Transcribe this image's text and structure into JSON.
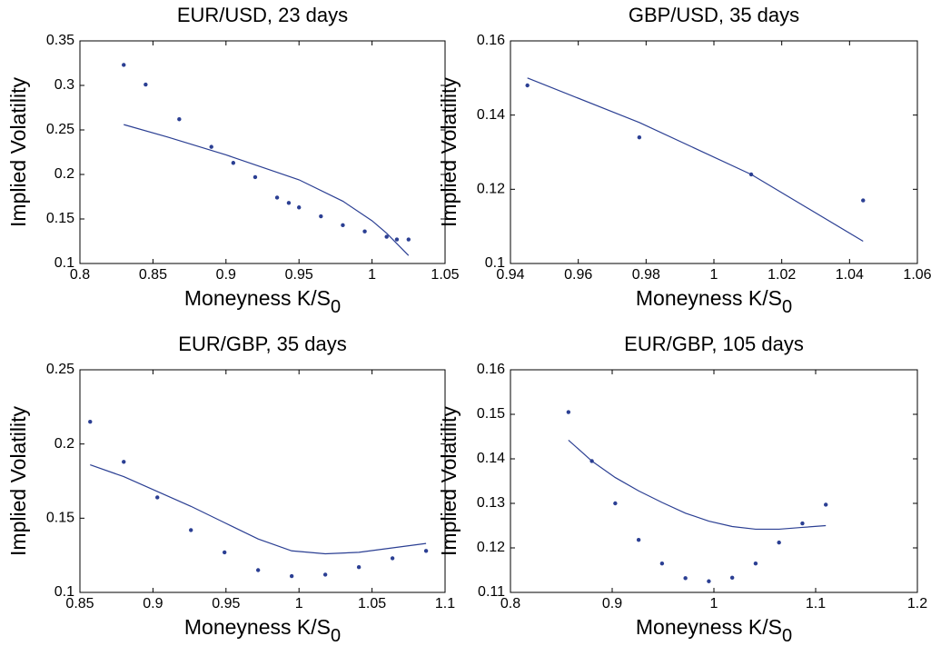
{
  "chart_data": [
    {
      "type": "line",
      "title": "EUR/USD, 23 days",
      "ylabel": "Implied Volatility",
      "xlabel": "Moneyness K/S",
      "xlabel_subscript": "0",
      "xlim": [
        0.8,
        1.05
      ],
      "xticks": [
        0.8,
        0.85,
        0.9,
        0.95,
        1,
        1.05
      ],
      "ylim": [
        0.1,
        0.35
      ],
      "yticks": [
        0.1,
        0.15,
        0.2,
        0.25,
        0.3,
        0.35
      ],
      "series": [
        {
          "type": "scatter",
          "color": "#2b3f93",
          "x": [
            0.83,
            0.845,
            0.868,
            0.89,
            0.905,
            0.92,
            0.935,
            0.943,
            0.95,
            0.965,
            0.98,
            0.995,
            1.01,
            1.017,
            1.025
          ],
          "values": [
            0.323,
            0.301,
            0.262,
            0.231,
            0.213,
            0.197,
            0.174,
            0.168,
            0.163,
            0.153,
            0.143,
            0.136,
            0.13,
            0.127,
            0.127
          ]
        },
        {
          "type": "line",
          "color": "#2b3f93",
          "x": [
            0.83,
            0.86,
            0.9,
            0.95,
            0.98,
            1.0,
            1.01,
            1.025
          ],
          "values": [
            0.256,
            0.242,
            0.222,
            0.194,
            0.17,
            0.148,
            0.134,
            0.109
          ]
        }
      ]
    },
    {
      "type": "line",
      "title": "GBP/USD, 35 days",
      "ylabel": "Implied Volatility",
      "xlabel": "Moneyness K/S",
      "xlabel_subscript": "0",
      "xlim": [
        0.94,
        1.06
      ],
      "xticks": [
        0.94,
        0.96,
        0.98,
        1,
        1.02,
        1.04,
        1.06
      ],
      "ylim": [
        0.1,
        0.16
      ],
      "yticks": [
        0.1,
        0.12,
        0.14,
        0.16
      ],
      "series": [
        {
          "type": "scatter",
          "color": "#2b3f93",
          "x": [
            0.945,
            0.978,
            1.011,
            1.044
          ],
          "values": [
            0.148,
            0.134,
            0.124,
            0.117
          ]
        },
        {
          "type": "line",
          "color": "#2b3f93",
          "x": [
            0.945,
            0.978,
            1.011,
            1.044
          ],
          "values": [
            0.15,
            0.138,
            0.124,
            0.106
          ]
        }
      ]
    },
    {
      "type": "line",
      "title": "EUR/GBP, 35 days",
      "ylabel": "Implied Volatility",
      "xlabel": "Moneyness K/S",
      "xlabel_subscript": "0",
      "xlim": [
        0.85,
        1.1
      ],
      "xticks": [
        0.85,
        0.9,
        0.95,
        1,
        1.05,
        1.1
      ],
      "ylim": [
        0.1,
        0.25
      ],
      "yticks": [
        0.1,
        0.15,
        0.2,
        0.25
      ],
      "series": [
        {
          "type": "scatter",
          "color": "#2b3f93",
          "x": [
            0.857,
            0.88,
            0.903,
            0.926,
            0.949,
            0.972,
            0.995,
            1.018,
            1.041,
            1.064,
            1.087
          ],
          "values": [
            0.215,
            0.188,
            0.164,
            0.142,
            0.127,
            0.115,
            0.111,
            0.112,
            0.117,
            0.123,
            0.128
          ]
        },
        {
          "type": "line",
          "color": "#2b3f93",
          "x": [
            0.857,
            0.88,
            0.903,
            0.926,
            0.949,
            0.972,
            0.995,
            1.018,
            1.041,
            1.064,
            1.087
          ],
          "values": [
            0.186,
            0.178,
            0.168,
            0.158,
            0.147,
            0.136,
            0.128,
            0.126,
            0.127,
            0.13,
            0.133
          ]
        }
      ]
    },
    {
      "type": "line",
      "title": "EUR/GBP, 105 days",
      "ylabel": "Implied Volatility",
      "xlabel": "Moneyness K/S",
      "xlabel_subscript": "0",
      "xlim": [
        0.8,
        1.2
      ],
      "xticks": [
        0.8,
        0.9,
        1,
        1.1,
        1.2
      ],
      "ylim": [
        0.11,
        0.16
      ],
      "yticks": [
        0.11,
        0.12,
        0.13,
        0.14,
        0.15,
        0.16
      ],
      "series": [
        {
          "type": "scatter",
          "color": "#2b3f93",
          "x": [
            0.857,
            0.88,
            0.903,
            0.926,
            0.949,
            0.972,
            0.995,
            1.018,
            1.041,
            1.064,
            1.087,
            1.11
          ],
          "values": [
            0.1505,
            0.1395,
            0.13,
            0.1218,
            0.1165,
            0.1132,
            0.1125,
            0.1133,
            0.1165,
            0.1212,
            0.1255,
            0.1297
          ]
        },
        {
          "type": "line",
          "color": "#2b3f93",
          "x": [
            0.857,
            0.88,
            0.903,
            0.926,
            0.949,
            0.972,
            0.995,
            1.018,
            1.041,
            1.064,
            1.087,
            1.11
          ],
          "values": [
            0.1442,
            0.1395,
            0.1358,
            0.1328,
            0.1302,
            0.1278,
            0.126,
            0.1248,
            0.1242,
            0.1242,
            0.1246,
            0.125
          ]
        }
      ]
    }
  ]
}
